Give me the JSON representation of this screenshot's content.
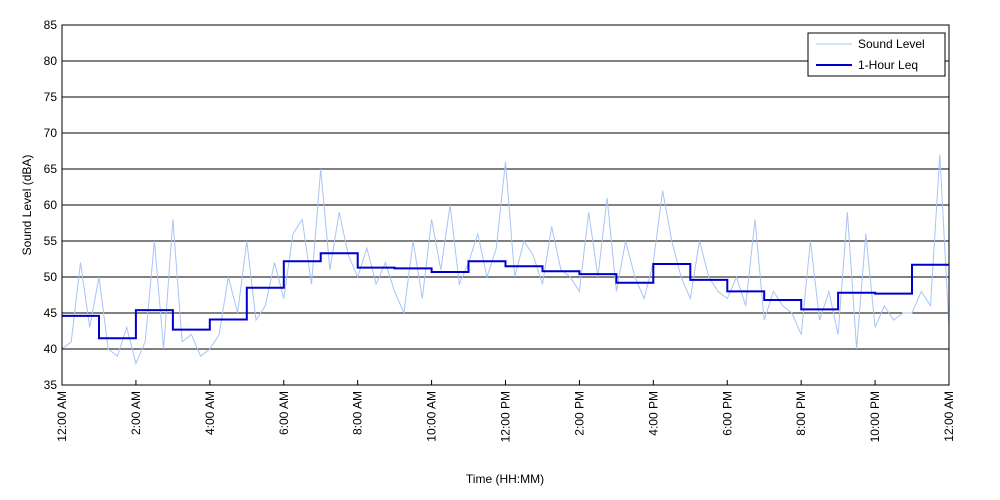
{
  "chart_data": {
    "type": "line",
    "xlabel": "Time (HH:MM)",
    "ylabel": "Sound Level (dBA)",
    "ylim": [
      35,
      85
    ],
    "yticks": [
      35,
      40,
      45,
      50,
      55,
      60,
      65,
      70,
      75,
      80,
      85
    ],
    "xlim_hours": [
      0,
      24
    ],
    "x_tick_hours": [
      0,
      2,
      4,
      6,
      8,
      10,
      12,
      14,
      16,
      18,
      20,
      22,
      24
    ],
    "x_tick_labels": [
      "12:00 AM",
      "2:00 AM",
      "4:00 AM",
      "6:00 AM",
      "8:00 AM",
      "10:00 AM",
      "12:00 PM",
      "2:00 PM",
      "4:00 PM",
      "6:00 PM",
      "8:00 PM",
      "10:00 PM",
      "12:00 AM"
    ],
    "grid": "horizontal",
    "legend_position": "top-right",
    "series": [
      {
        "name": "Sound Level",
        "color": "#a9c4f5",
        "style": "thin",
        "x_hours": [
          0,
          0.25,
          0.5,
          0.75,
          1,
          1.25,
          1.5,
          1.75,
          2,
          2.25,
          2.5,
          2.75,
          3,
          3.25,
          3.5,
          3.75,
          4,
          4.25,
          4.5,
          4.75,
          5,
          5.25,
          5.5,
          5.75,
          6,
          6.25,
          6.5,
          6.75,
          7,
          7.25,
          7.5,
          7.75,
          8,
          8.25,
          8.5,
          8.75,
          9,
          9.25,
          9.5,
          9.75,
          10,
          10.25,
          10.5,
          10.75,
          11,
          11.25,
          11.5,
          11.75,
          12,
          12.25,
          12.5,
          12.75,
          13,
          13.25,
          13.5,
          13.75,
          14,
          14.25,
          14.5,
          14.75,
          15,
          15.25,
          15.5,
          15.75,
          16,
          16.25,
          16.5,
          16.75,
          17,
          17.25,
          17.5,
          17.75,
          18,
          18.25,
          18.5,
          18.75,
          19,
          19.25,
          19.5,
          19.75,
          20,
          20.25,
          20.5,
          20.75,
          21,
          21.25,
          21.5,
          21.75,
          22,
          22.25,
          22.5,
          22.75,
          23,
          23.25,
          23.5,
          23.75,
          24
        ],
        "values": [
          40,
          41,
          52,
          43,
          50,
          40,
          39,
          43,
          38,
          41,
          55,
          40,
          58,
          41,
          42,
          39,
          40,
          42,
          50,
          45,
          55,
          44,
          46,
          52,
          47,
          56,
          58,
          49,
          65,
          51,
          59,
          53,
          50,
          54,
          49,
          52,
          48,
          45,
          55,
          47,
          58,
          51,
          60,
          49,
          52,
          56,
          50,
          54,
          66,
          50,
          55,
          53,
          49,
          57,
          51,
          50,
          48,
          59,
          50,
          61,
          48,
          55,
          50,
          47,
          52,
          62,
          55,
          50,
          47,
          55,
          50,
          48,
          47,
          50,
          46,
          58,
          44,
          48,
          46,
          45,
          42,
          55,
          44,
          48,
          42,
          59,
          40,
          56,
          43,
          46,
          44,
          45,
          45,
          48,
          46,
          67,
          43
        ]
      },
      {
        "name": "1-Hour Leq",
        "color": "#0000cc",
        "style": "step",
        "x_hours": [
          0,
          1,
          2,
          3,
          4,
          5,
          6,
          7,
          8,
          9,
          10,
          11,
          12,
          13,
          14,
          15,
          16,
          17,
          18,
          19,
          20,
          21,
          22,
          23
        ],
        "values": [
          44.6,
          41.5,
          45.4,
          42.7,
          44.1,
          48.5,
          52.2,
          53.3,
          51.3,
          51.2,
          50.7,
          52.2,
          51.5,
          50.8,
          50.4,
          49.2,
          51.8,
          49.6,
          48.0,
          46.8,
          45.5,
          47.8,
          47.7,
          51.7
        ]
      }
    ]
  }
}
